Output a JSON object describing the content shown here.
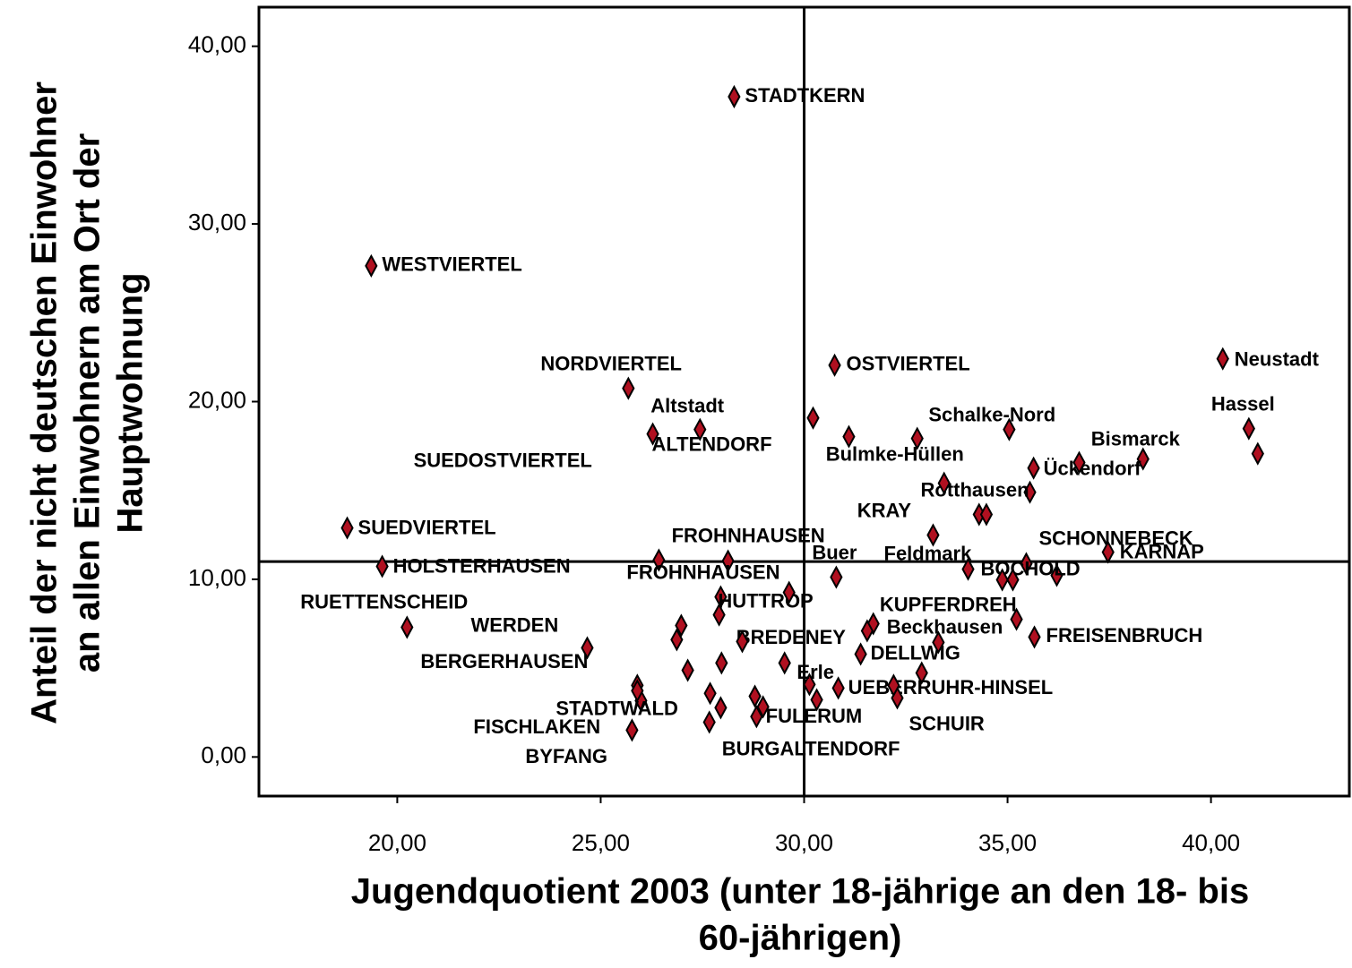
{
  "chart_data": {
    "type": "scatter",
    "xlabel": [
      "Jugendquotient 2003 (unter 18-jährige an den 18- bis",
      "60-jährigen)"
    ],
    "ylabel": [
      "Anteil der nicht deutschen Einwohner",
      "an allen Einwohnern am Ort der",
      "Hauptwohnung"
    ],
    "xlim": [
      16.6,
      43.4
    ],
    "ylim": [
      -2.2,
      42.2
    ],
    "xticks": [
      {
        "value": 20,
        "label": "20,00"
      },
      {
        "value": 25,
        "label": "25,00"
      },
      {
        "value": 30,
        "label": "30,00"
      },
      {
        "value": 35,
        "label": "35,00"
      },
      {
        "value": 40,
        "label": "40,00"
      }
    ],
    "yticks": [
      {
        "value": 0,
        "label": "0,00"
      },
      {
        "value": 10,
        "label": "10,00"
      },
      {
        "value": 20,
        "label": "20,00"
      },
      {
        "value": 30,
        "label": "30,00"
      },
      {
        "value": 40,
        "label": "40,00"
      }
    ],
    "reference_lines": {
      "x": 30,
      "y": 11
    },
    "color": "#b01020",
    "x": [
      28.28,
      19.36,
      25.68,
      30.75,
      40.29,
      40.93,
      41.15,
      38.33,
      27.44,
      26.28,
      30.22,
      32.78,
      35.04,
      31.1,
      35.55,
      33.44,
      35.64,
      36.76,
      34.3,
      34.48,
      33.17,
      34.03,
      30.79,
      35.46,
      37.47,
      36.21,
      34.87,
      35.13,
      35.66,
      35.22,
      31.7,
      31.55,
      31.39,
      33.3,
      32.89,
      30.84,
      32.29,
      32.2,
      30.13,
      30.31,
      29.52,
      28.99,
      28.79,
      28.83,
      27.67,
      27.95,
      27.95,
      29.63,
      27.91,
      28.13,
      26.43,
      28.48,
      27.97,
      27.14,
      26.98,
      26.87,
      24.67,
      25.9,
      25.99,
      25.77,
      25.9,
      27.69,
      18.77,
      19.63,
      20.24
    ],
    "y": [
      37.16,
      27.64,
      20.75,
      22.05,
      22.41,
      18.48,
      17.07,
      16.77,
      18.43,
      18.18,
      19.08,
      17.93,
      18.43,
      18.03,
      14.9,
      15.41,
      16.26,
      16.57,
      13.65,
      13.65,
      12.49,
      10.57,
      10.12,
      10.88,
      11.53,
      10.22,
      9.97,
      9.97,
      6.75,
      7.75,
      7.5,
      7.1,
      5.79,
      6.45,
      4.73,
      3.88,
      3.32,
      4.03,
      4.08,
      3.22,
      5.29,
      2.82,
      3.42,
      2.27,
      1.96,
      2.77,
      9.01,
      9.26,
      8.0,
      11.03,
      11.08,
      6.5,
      5.29,
      4.88,
      7.4,
      6.6,
      6.14,
      4.03,
      3.17,
      1.51,
      3.73,
      3.58,
      12.89,
      10.73,
      7.3
    ],
    "labels": [
      "STADTKERN",
      "WESTVIERTEL",
      "NORDVIERTEL",
      "OSTVIERTEL",
      "Neustadt",
      "Hassel",
      null,
      "Bismarck",
      "Altstadt",
      "SUEDOSTVIERTEL",
      "ALTENDORF",
      "Bulmke-Hüllen",
      "Schalke-Nord",
      null,
      "Rotthausen",
      null,
      "Ückendorf",
      null,
      "KRAY",
      null,
      null,
      "Feldmark",
      "Buer",
      "SCHONNEBECK",
      "KARNAP",
      "BOCHOLD",
      null,
      null,
      "FREISENBRUCH",
      null,
      "Beckhausen",
      "KUPFERDREH",
      "DELLWIG",
      null,
      null,
      "UEBERRUHR-HINSEL",
      "SCHUIR",
      null,
      "Erle",
      null,
      "BREDENEY",
      "FULERUM",
      null,
      null,
      "BURGALTENDORF",
      null,
      "HUTTROP",
      null,
      null,
      "FROHNHAUSEN",
      "FROHNHAUSEN",
      null,
      null,
      null,
      null,
      null,
      "WERDEN",
      "BERGERHAUSEN",
      "STADTWALD",
      "FISCHLAKEN",
      "BYFANG",
      null,
      "SUEDVIERTEL",
      "HOLSTERHAUSEN",
      "RUETTENSCHEID"
    ]
  }
}
